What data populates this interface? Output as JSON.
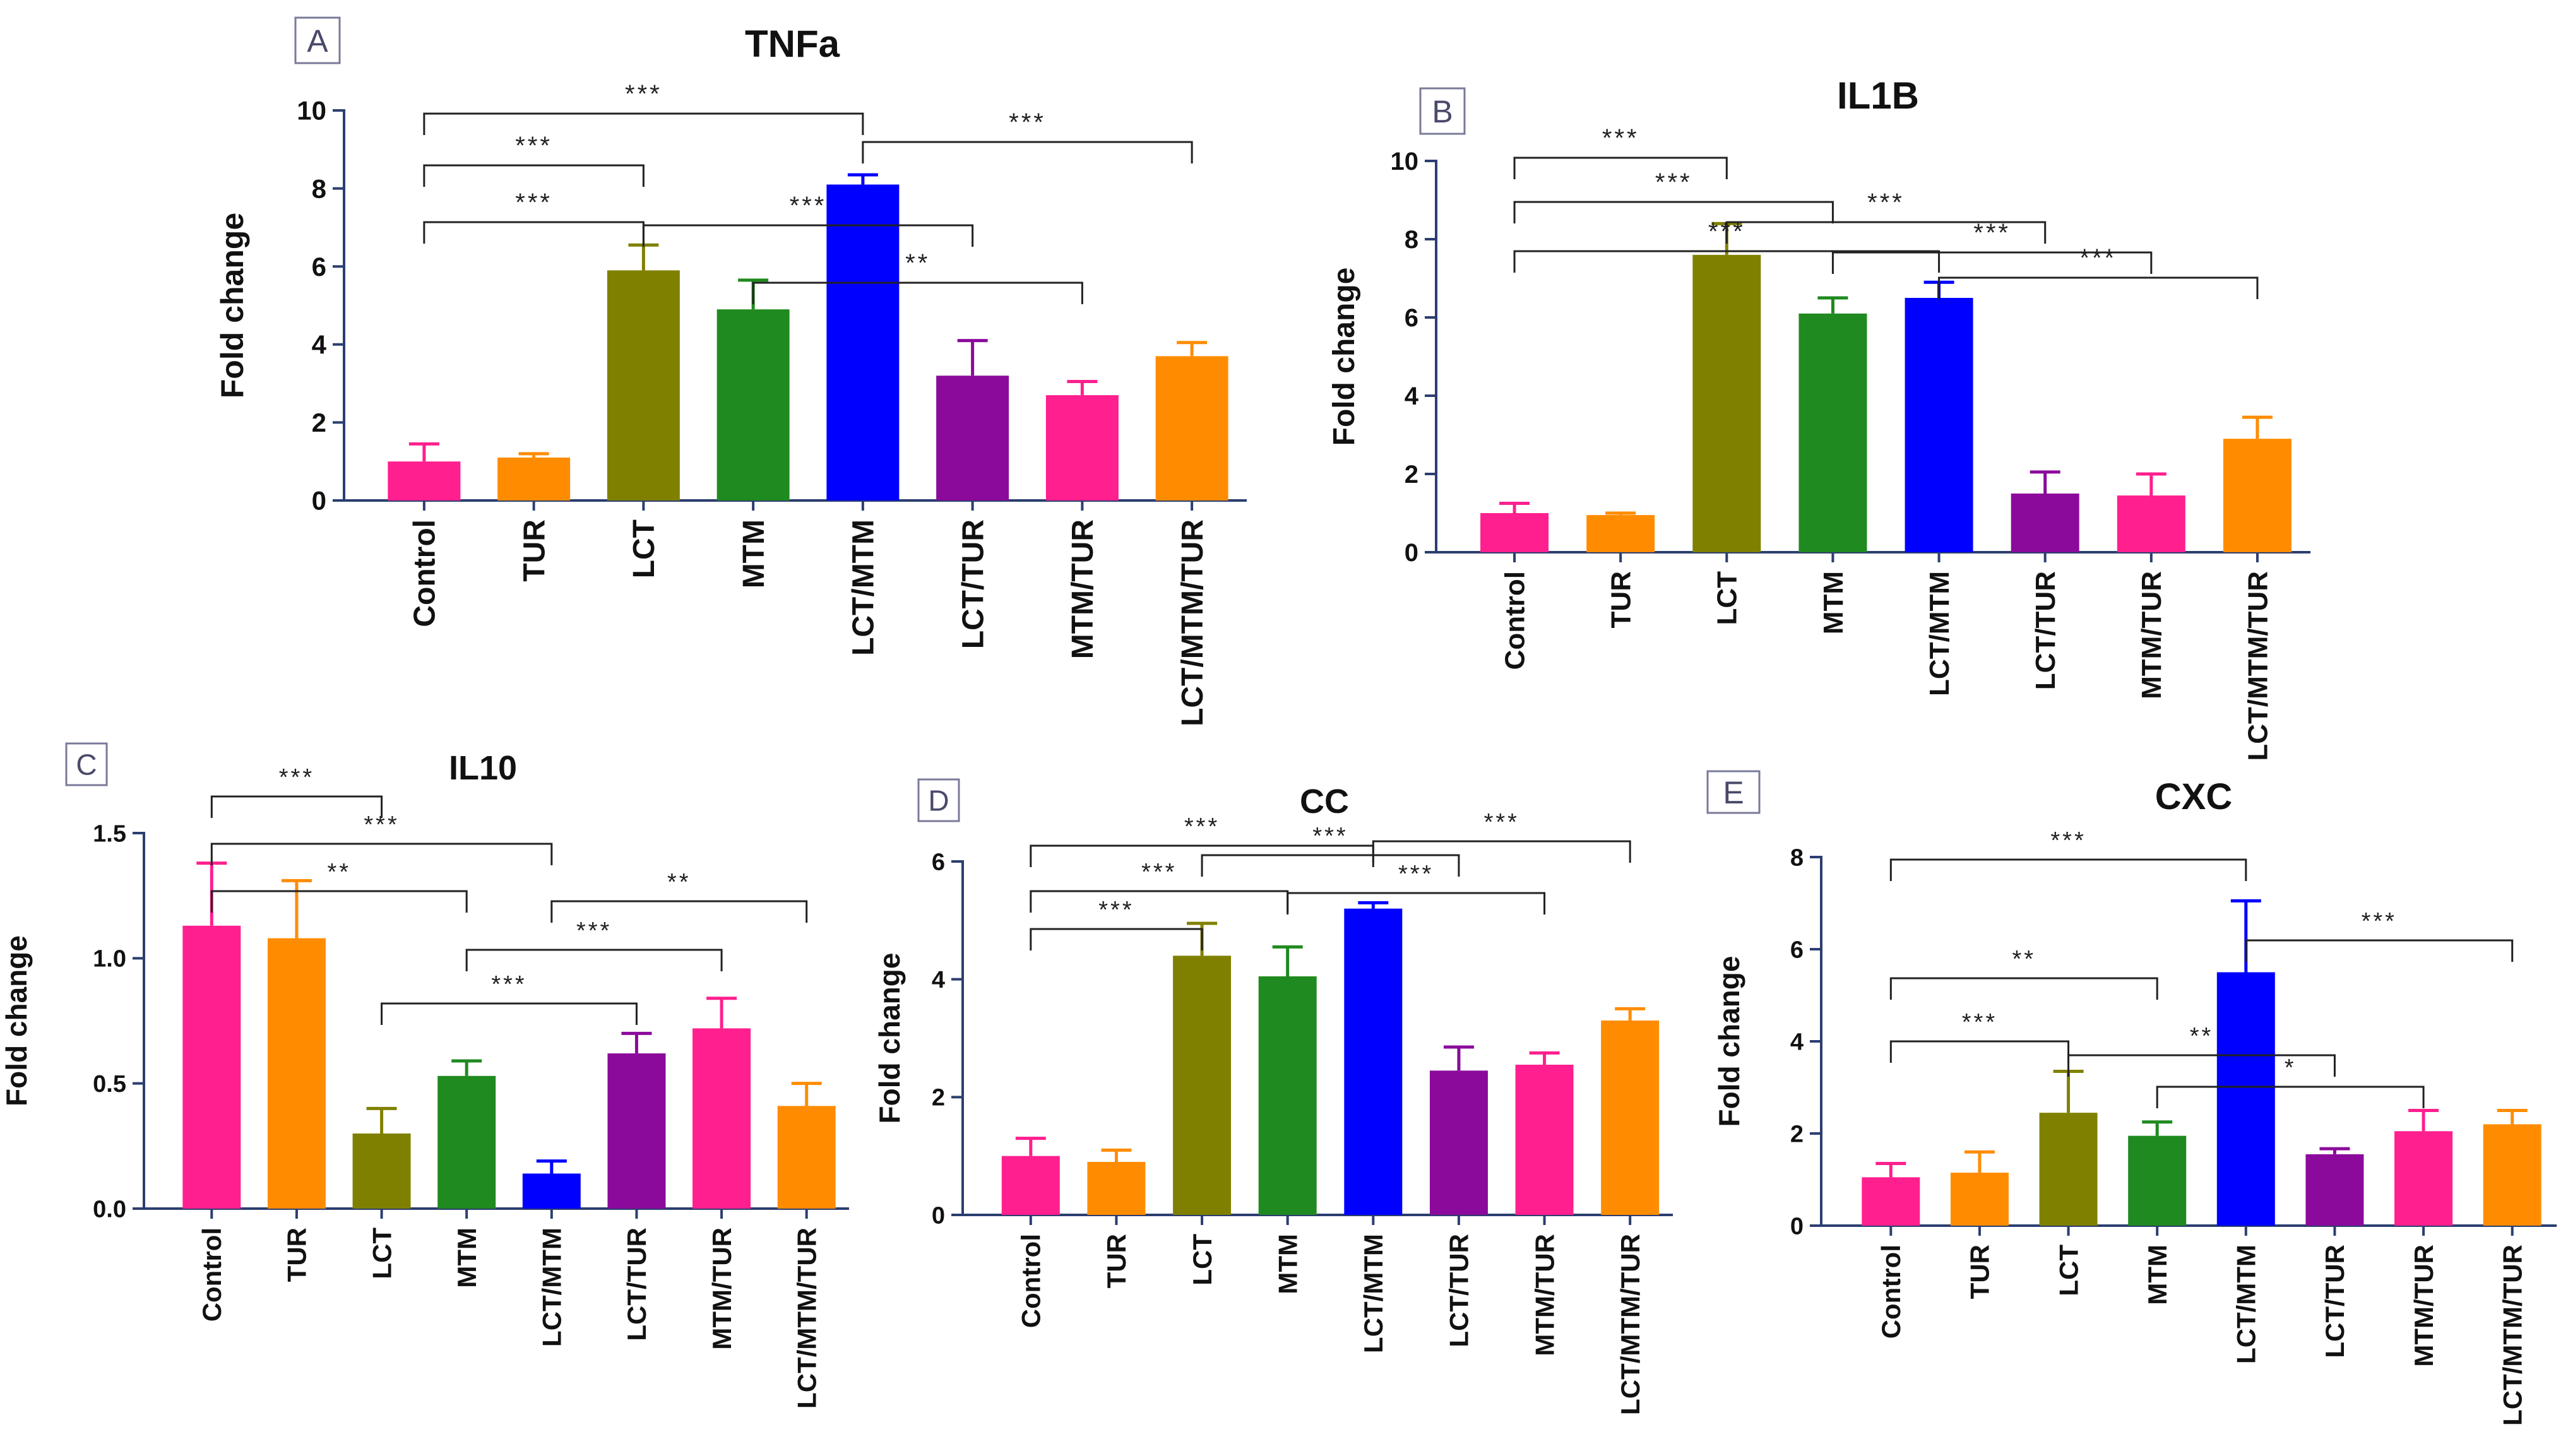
{
  "figure": {
    "categories": [
      "Control",
      "TUR",
      "LCT",
      "MTM",
      "LCT/MTM",
      "LCT/TUR",
      "MTM/TUR",
      "LCT/MTM/TUR"
    ],
    "colors": [
      "#ff1f8e",
      "#ff8c00",
      "#808000",
      "#1f8a1f",
      "#0000ff",
      "#8b0a9b",
      "#ff1f8e",
      "#ff8c00"
    ],
    "ylabel": "Fold change"
  },
  "chart_data": [
    {
      "type": "bar",
      "panel": "A",
      "title": "TNFa",
      "ylabel": "Fold change",
      "categories": [
        "Control",
        "TUR",
        "LCT",
        "MTM",
        "LCT/MTM",
        "LCT/TUR",
        "MTM/TUR",
        "LCT/MTM/TUR"
      ],
      "values": [
        1.0,
        1.1,
        5.9,
        4.9,
        8.1,
        3.2,
        2.7,
        3.7
      ],
      "errors": [
        0.45,
        0.1,
        0.65,
        0.75,
        0.25,
        0.9,
        0.35,
        0.35
      ],
      "ylim": [
        0,
        10
      ],
      "yticks": [
        "0",
        "2",
        "4",
        "6",
        "8",
        "10"
      ],
      "ytick_values": [
        0,
        2,
        4,
        6,
        8,
        10
      ],
      "significance": [
        {
          "from": 0,
          "to": 4,
          "label": "***"
        },
        {
          "from": 0,
          "to": 2,
          "label": "***"
        },
        {
          "from": 0,
          "to": 2,
          "label": "***"
        },
        {
          "from": 2,
          "to": 5,
          "label": "***"
        },
        {
          "from": 3,
          "to": 6,
          "label": "**"
        },
        {
          "from": 4,
          "to": 7,
          "label": "***"
        }
      ]
    },
    {
      "type": "bar",
      "panel": "B",
      "title": "IL1B",
      "ylabel": "Fold change",
      "categories": [
        "Control",
        "TUR",
        "LCT",
        "MTM",
        "LCT/MTM",
        "LCT/TUR",
        "MTM/TUR",
        "LCT/MTM/TUR"
      ],
      "values": [
        1.0,
        0.95,
        7.6,
        6.1,
        6.5,
        1.5,
        1.45,
        2.9
      ],
      "errors": [
        0.25,
        0.05,
        0.8,
        0.4,
        0.4,
        0.55,
        0.55,
        0.55
      ],
      "ylim": [
        0,
        10
      ],
      "yticks": [
        "0",
        "2",
        "4",
        "6",
        "8",
        "10"
      ],
      "ytick_values": [
        0,
        2,
        4,
        6,
        8,
        10
      ],
      "significance": [
        {
          "from": 0,
          "to": 2,
          "label": "***"
        },
        {
          "from": 0,
          "to": 3,
          "label": "***"
        },
        {
          "from": 0,
          "to": 4,
          "label": "***"
        },
        {
          "from": 2,
          "to": 5,
          "label": "***"
        },
        {
          "from": 3,
          "to": 6,
          "label": "***"
        },
        {
          "from": 4,
          "to": 7,
          "label": "***"
        }
      ]
    },
    {
      "type": "bar",
      "panel": "C",
      "title": "IL10",
      "ylabel": "Fold change",
      "categories": [
        "Control",
        "TUR",
        "LCT",
        "MTM",
        "LCT/MTM",
        "LCT/TUR",
        "MTM/TUR",
        "LCT/MTM/TUR"
      ],
      "values": [
        1.13,
        1.08,
        0.3,
        0.53,
        0.14,
        0.62,
        0.72,
        0.41
      ],
      "errors": [
        0.25,
        0.23,
        0.1,
        0.06,
        0.05,
        0.08,
        0.12,
        0.09
      ],
      "ylim": [
        0,
        1.5
      ],
      "yticks": [
        "0.0",
        "0.5",
        "1.0",
        "1.5"
      ],
      "ytick_values": [
        0,
        0.5,
        1.0,
        1.5
      ],
      "significance": [
        {
          "from": 0,
          "to": 2,
          "label": "***"
        },
        {
          "from": 0,
          "to": 4,
          "label": "***"
        },
        {
          "from": 0,
          "to": 3,
          "label": "**"
        },
        {
          "from": 4,
          "to": 7,
          "label": "**"
        },
        {
          "from": 3,
          "to": 6,
          "label": "***"
        },
        {
          "from": 2,
          "to": 5,
          "label": "***"
        }
      ]
    },
    {
      "type": "bar",
      "panel": "D",
      "title": "CC",
      "ylabel": "Fold change",
      "categories": [
        "Control",
        "TUR",
        "LCT",
        "MTM",
        "LCT/MTM",
        "LCT/TUR",
        "MTM/TUR",
        "LCT/MTM/TUR"
      ],
      "values": [
        1.0,
        0.9,
        4.4,
        4.05,
        5.2,
        2.45,
        2.55,
        3.3
      ],
      "errors": [
        0.3,
        0.2,
        0.55,
        0.5,
        0.1,
        0.4,
        0.2,
        0.2
      ],
      "ylim": [
        0,
        6
      ],
      "yticks": [
        "0",
        "2",
        "4",
        "6"
      ],
      "ytick_values": [
        0,
        2,
        4,
        6
      ],
      "significance": [
        {
          "from": 0,
          "to": 4,
          "label": "***"
        },
        {
          "from": 0,
          "to": 2,
          "label": "***"
        },
        {
          "from": 0,
          "to": 3,
          "label": "***"
        },
        {
          "from": 2,
          "to": 5,
          "label": "***"
        },
        {
          "from": 3,
          "to": 6,
          "label": "***"
        },
        {
          "from": 4,
          "to": 7,
          "label": "***"
        }
      ]
    },
    {
      "type": "bar",
      "panel": "E",
      "title": "CXC",
      "ylabel": "Fold change",
      "categories": [
        "Control",
        "TUR",
        "LCT",
        "MTM",
        "LCT/MTM",
        "LCT/TUR",
        "MTM/TUR",
        "LCT/MTM/TUR"
      ],
      "values": [
        1.05,
        1.15,
        2.45,
        1.95,
        5.5,
        1.55,
        2.05,
        2.2
      ],
      "errors": [
        0.3,
        0.45,
        0.9,
        0.3,
        1.55,
        0.12,
        0.45,
        0.3
      ],
      "ylim": [
        0,
        8
      ],
      "yticks": [
        "0",
        "2",
        "4",
        "6",
        "8"
      ],
      "ytick_values": [
        0,
        2,
        4,
        6,
        8
      ],
      "significance": [
        {
          "from": 0,
          "to": 4,
          "label": "***"
        },
        {
          "from": 0,
          "to": 3,
          "label": "**"
        },
        {
          "from": 0,
          "to": 2,
          "label": "***"
        },
        {
          "from": 2,
          "to": 5,
          "label": "**"
        },
        {
          "from": 3,
          "to": 6,
          "label": "*"
        },
        {
          "from": 4,
          "to": 7,
          "label": "***"
        }
      ]
    }
  ]
}
